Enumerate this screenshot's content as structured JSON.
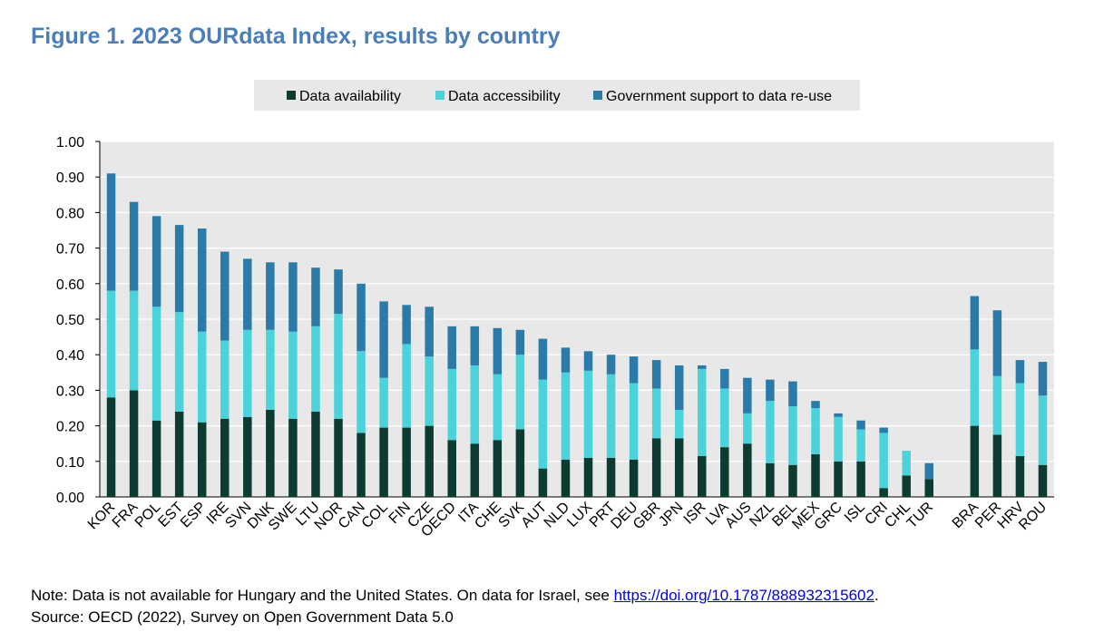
{
  "title": "Figure 1. 2023 OURdata Index, results by country",
  "colors": {
    "availability": "#0b3b31",
    "accessibility": "#4bd3dc",
    "support": "#2b7ba8",
    "plot_bg": "#e8e8e8",
    "legend_bg": "#e8e8e8",
    "grid": "#ffffff"
  },
  "chart_data": {
    "type": "bar",
    "stacked": true,
    "categories": [
      "KOR",
      "FRA",
      "POL",
      "EST",
      "ESP",
      "IRE",
      "SVN",
      "DNK",
      "SWE",
      "LTU",
      "NOR",
      "CAN",
      "COL",
      "FIN",
      "CZE",
      "OECD",
      "ITA",
      "CHE",
      "SVK",
      "AUT",
      "NLD",
      "LUX",
      "PRT",
      "DEU",
      "GBR",
      "JPN",
      "ISR",
      "LVA",
      "AUS",
      "NZL",
      "BEL",
      "MEX",
      "GRC",
      "ISL",
      "CRI",
      "CHL",
      "TUR",
      "",
      "BRA",
      "PER",
      "HRV",
      "ROU"
    ],
    "series": [
      {
        "name": "Data availability",
        "color_key": "availability",
        "values": [
          0.28,
          0.3,
          0.215,
          0.24,
          0.21,
          0.22,
          0.225,
          0.245,
          0.22,
          0.24,
          0.22,
          0.18,
          0.195,
          0.195,
          0.2,
          0.16,
          0.15,
          0.16,
          0.19,
          0.08,
          0.105,
          0.11,
          0.11,
          0.105,
          0.165,
          0.165,
          0.115,
          0.14,
          0.15,
          0.095,
          0.09,
          0.12,
          0.1,
          0.1,
          0.025,
          0.06,
          0.05,
          null,
          0.2,
          0.175,
          0.115,
          0.09
        ]
      },
      {
        "name": "Data accessibility",
        "color_key": "accessibility",
        "values": [
          0.3,
          0.28,
          0.32,
          0.28,
          0.255,
          0.22,
          0.245,
          0.225,
          0.245,
          0.24,
          0.295,
          0.23,
          0.14,
          0.235,
          0.195,
          0.2,
          0.22,
          0.185,
          0.21,
          0.25,
          0.245,
          0.245,
          0.235,
          0.215,
          0.14,
          0.08,
          0.245,
          0.165,
          0.085,
          0.175,
          0.165,
          0.13,
          0.125,
          0.09,
          0.155,
          0.07,
          0.0,
          null,
          0.215,
          0.165,
          0.205,
          0.195
        ]
      },
      {
        "name": "Government support to data re-use",
        "color_key": "support",
        "values": [
          0.33,
          0.25,
          0.255,
          0.245,
          0.29,
          0.25,
          0.2,
          0.19,
          0.195,
          0.165,
          0.125,
          0.19,
          0.215,
          0.11,
          0.14,
          0.12,
          0.11,
          0.13,
          0.07,
          0.115,
          0.07,
          0.055,
          0.055,
          0.075,
          0.08,
          0.125,
          0.01,
          0.055,
          0.1,
          0.06,
          0.07,
          0.02,
          0.01,
          0.025,
          0.015,
          0.0,
          0.045,
          null,
          0.15,
          0.185,
          0.065,
          0.095
        ]
      }
    ],
    "ylim": [
      0,
      1.0
    ],
    "yticks": [
      "0.00",
      "0.10",
      "0.20",
      "0.30",
      "0.40",
      "0.50",
      "0.60",
      "0.70",
      "0.80",
      "0.90",
      "1.00"
    ],
    "grid": true,
    "legend_position": "top-center"
  },
  "note_prefix": "Note: Data is not available for Hungary and the United States. On data for Israel, see ",
  "note_link": "https://doi.org/10.1787/888932315602",
  "note_suffix": ".",
  "source": "Source: OECD (2022), Survey on Open Government Data 5.0"
}
